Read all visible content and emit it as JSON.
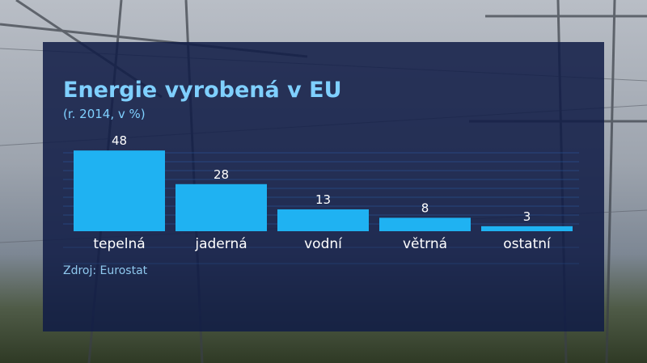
{
  "title": "Energie vyrobená v EU",
  "subtitle": "(r. 2014, v %)",
  "source": "Zdroj: Eurostat",
  "colors": {
    "bar": "#1fb2f2",
    "panel": "#101c46",
    "title": "#7fd0ff",
    "text": "#ffffff",
    "source": "#8fc8ee"
  },
  "chart_data": {
    "type": "bar",
    "categories": [
      "tepelná",
      "jaderná",
      "vodní",
      "větrná",
      "ostatní"
    ],
    "values": [
      48,
      28,
      13,
      8,
      3
    ],
    "data_labels": [
      "48",
      "28",
      "13",
      "8",
      "3"
    ],
    "ylim": [
      0,
      50
    ],
    "grid": true,
    "legend": "none"
  }
}
